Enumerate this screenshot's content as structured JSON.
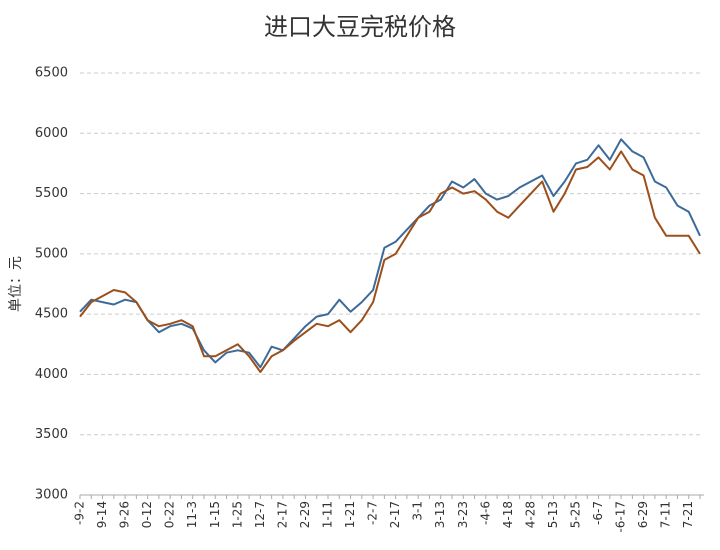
{
  "chart_data": {
    "type": "line",
    "title": "进口大豆完税价格",
    "y_label": "单位：元",
    "categories": [
      "-9-2",
      null,
      "9-14",
      null,
      "9-26",
      null,
      "0-12",
      null,
      "0-22",
      null,
      "11-3",
      null,
      "1-15",
      null,
      "1-25",
      null,
      "12-7",
      null,
      "2-17",
      null,
      "2-29",
      null,
      "1-11",
      null,
      "1-21",
      null,
      "-2-7",
      null,
      "2-17",
      null,
      "3-1",
      null,
      "3-13",
      null,
      "3-23",
      null,
      "-4-6",
      null,
      "4-18",
      null,
      "4-28",
      null,
      "5-13",
      null,
      "5-25",
      null,
      "-6-7",
      null,
      "-6-17",
      null,
      "6-29",
      null,
      "7-11",
      null,
      "7-21",
      null
    ],
    "series": [
      {
        "color": "#3d6a99",
        "values": [
          4520,
          4620,
          4600,
          4580,
          4620,
          4600,
          4450,
          4350,
          4400,
          4420,
          4380,
          4200,
          4100,
          4180,
          4200,
          4180,
          4060,
          4230,
          4200,
          4300,
          4400,
          4480,
          4500,
          4620,
          4520,
          4600,
          4700,
          5050,
          5100,
          5200,
          5300,
          5400,
          5450,
          5600,
          5550,
          5620,
          5500,
          5450,
          5480,
          5550,
          5600,
          5650,
          5480,
          5600,
          5750,
          5780,
          5900,
          5780,
          5950,
          5850,
          5800,
          5600,
          5550,
          5400,
          5350,
          5150
        ]
      },
      {
        "color": "#9c4f1a",
        "values": [
          4480,
          4600,
          4650,
          4700,
          4680,
          4600,
          4450,
          4400,
          4420,
          4450,
          4400,
          4150,
          4150,
          4200,
          4250,
          4150,
          4020,
          4150,
          4200,
          4280,
          4350,
          4420,
          4400,
          4450,
          4350,
          4450,
          4600,
          4950,
          5000,
          5150,
          5300,
          5350,
          5500,
          5550,
          5500,
          5520,
          5450,
          5350,
          5300,
          5400,
          5500,
          5600,
          5350,
          5500,
          5700,
          5720,
          5800,
          5700,
          5850,
          5700,
          5650,
          5300,
          5150,
          5150,
          5150,
          5000
        ]
      }
    ],
    "ylim": [
      3000,
      6500
    ],
    "yticks": [
      3000,
      3500,
      4000,
      4500,
      5000,
      5500,
      6000,
      6500
    ],
    "grid": true
  }
}
